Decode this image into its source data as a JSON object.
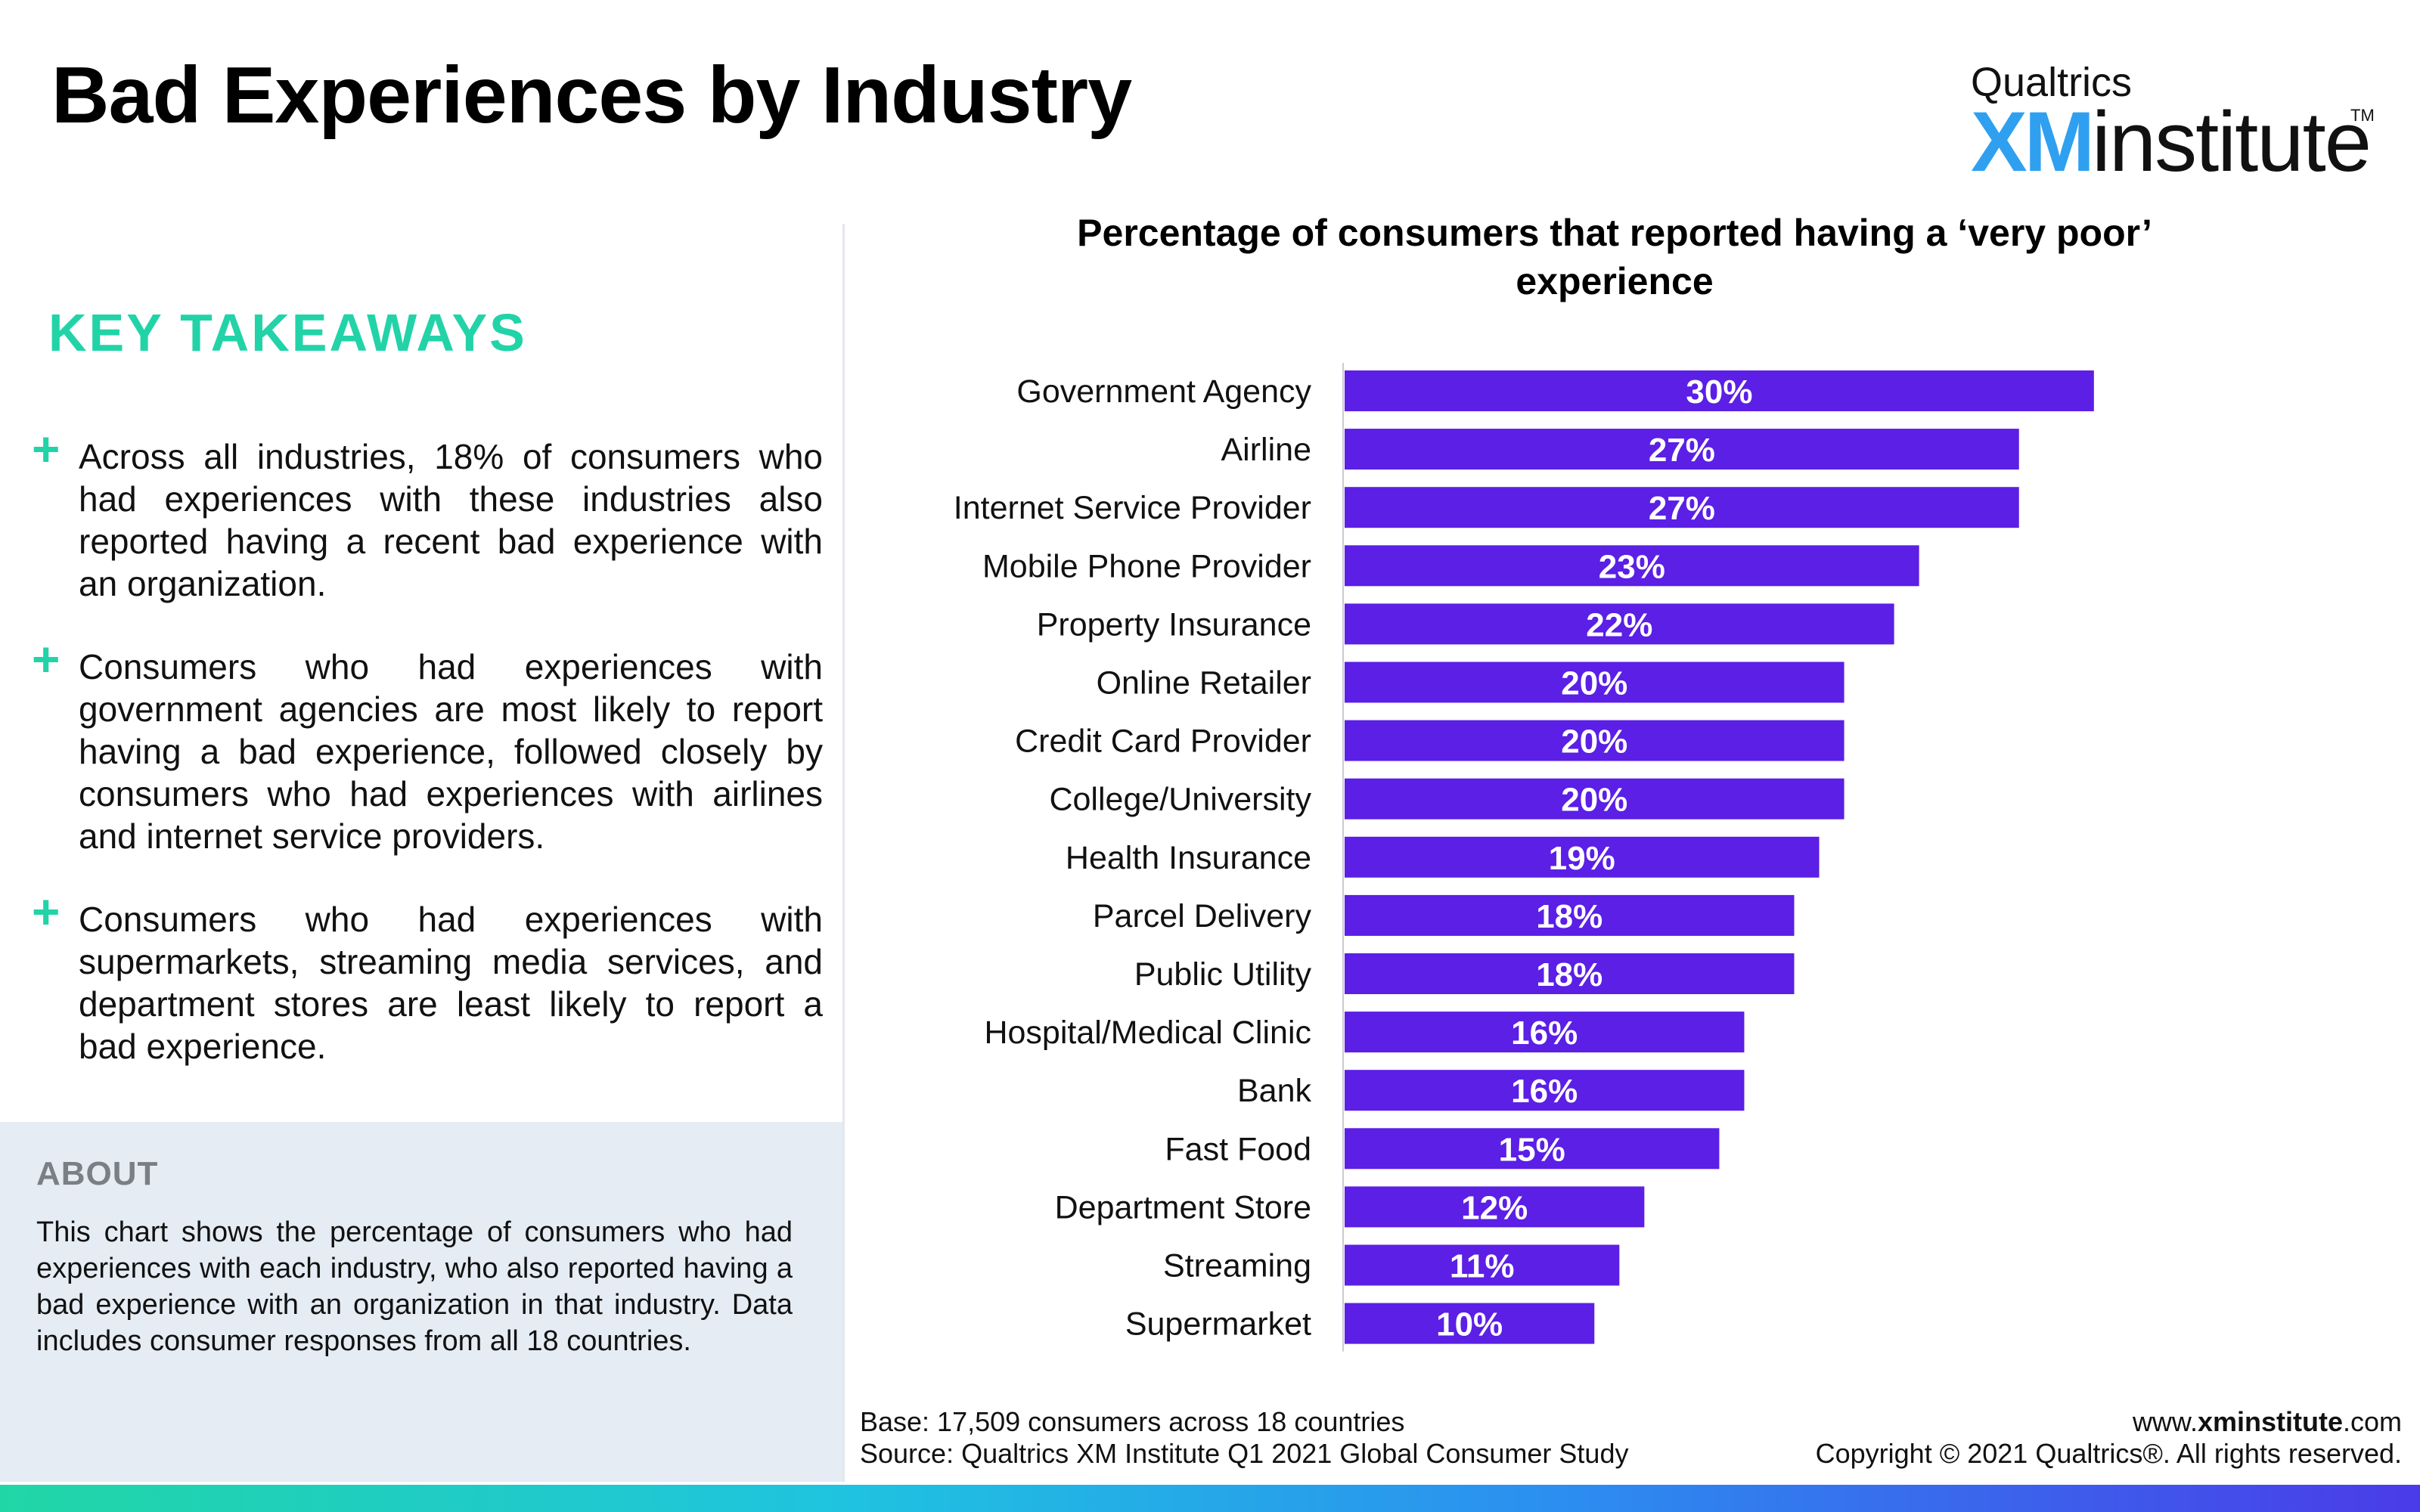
{
  "header": {
    "title": "Bad Experiences by Industry",
    "logo": {
      "brand": "Qualtrics",
      "xm": "XM",
      "institute": "institute",
      "tm": "TM"
    }
  },
  "takeaways": {
    "heading": "KEY TAKEAWAYS",
    "items": [
      "Across all industries, 18% of consumers who had experiences with these industries also reported having a recent bad experience with an organization.",
      "Consumers who had experiences with government agencies are most likely to report having a bad experience, followed closely by consumers who had experiences with airlines and internet service providers.",
      "Consumers who had experiences with supermarkets, streaming media services, and department stores are least likely to report a bad experience."
    ]
  },
  "about": {
    "heading": "ABOUT",
    "text": "This chart shows the percentage of consumers who had experiences with each industry, who also reported having a bad experience with an organization in that industry. Data includes consumer responses from all 18 countries."
  },
  "chart_data": {
    "type": "bar",
    "orientation": "horizontal",
    "title": "Percentage of consumers that reported having a ‘very poor’ experience",
    "categories": [
      "Government Agency",
      "Airline",
      "Internet Service Provider",
      "Mobile Phone Provider",
      "Property Insurance",
      "Online Retailer",
      "Credit Card Provider",
      "College/University",
      "Health Insurance",
      "Parcel Delivery",
      "Public Utility",
      "Hospital/Medical Clinic",
      "Bank",
      "Fast Food",
      "Department Store",
      "Streaming",
      "Supermarket"
    ],
    "values": [
      30,
      27,
      27,
      23,
      22,
      20,
      20,
      20,
      19,
      18,
      18,
      16,
      16,
      15,
      12,
      11,
      10
    ],
    "value_labels": [
      "30%",
      "27%",
      "27%",
      "23%",
      "22%",
      "20%",
      "20%",
      "20%",
      "19%",
      "18%",
      "18%",
      "16%",
      "16%",
      "15%",
      "12%",
      "11%",
      "10%"
    ],
    "xlim": [
      0,
      36
    ],
    "bar_color": "#5b1fe6",
    "label_color": "#ffffff",
    "grid": false,
    "legend": "none"
  },
  "footer": {
    "base": "Base: 17,509 consumers across 18 countries",
    "source": "Source: Qualtrics XM Institute Q1 2021 Global Consumer Study",
    "url_prefix": "www.",
    "url_bold": "xminstitute",
    "url_suffix": ".com",
    "copyright": "Copyright © 2021 Qualtrics®. All rights reserved."
  },
  "colors": {
    "accent": "#22d3a8",
    "bar": "#5b1fe6",
    "about_bg": "#e5ecf3",
    "logo_blue": "#2fa0f0"
  }
}
